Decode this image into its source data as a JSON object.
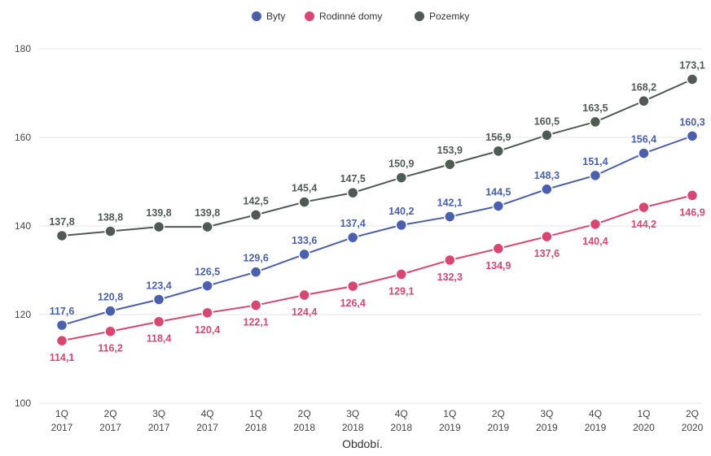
{
  "chart_data": {
    "type": "line",
    "categories": [
      [
        "1Q",
        "2017"
      ],
      [
        "2Q",
        "2017"
      ],
      [
        "3Q",
        "2017"
      ],
      [
        "4Q",
        "2017"
      ],
      [
        "1Q",
        "2018"
      ],
      [
        "2Q",
        "2018"
      ],
      [
        "3Q",
        "2018"
      ],
      [
        "4Q",
        "2018"
      ],
      [
        "1Q",
        "2019"
      ],
      [
        "2Q",
        "2019"
      ],
      [
        "3Q",
        "2019"
      ],
      [
        "4Q",
        "2019"
      ],
      [
        "1Q",
        "2020"
      ],
      [
        "2Q",
        "2020"
      ]
    ],
    "series": [
      {
        "name": "Byty",
        "color": "#4a5fad",
        "values": [
          117.6,
          120.8,
          123.4,
          126.5,
          129.6,
          133.6,
          137.4,
          140.2,
          142.1,
          144.5,
          148.3,
          151.4,
          156.4,
          160.3
        ],
        "labels": [
          "117,6",
          "120,8",
          "123,4",
          "126,5",
          "129,6",
          "133,6",
          "137,4",
          "140,2",
          "142,1",
          "144,5",
          "148,3",
          "151,4",
          "156,4",
          "160,3"
        ]
      },
      {
        "name": "Rodinné domy",
        "color": "#d94671",
        "values": [
          114.1,
          116.2,
          118.4,
          120.4,
          122.1,
          124.4,
          126.4,
          129.1,
          132.3,
          134.9,
          137.6,
          140.4,
          144.2,
          146.9
        ],
        "labels": [
          "114,1",
          "116,2",
          "118,4",
          "120,4",
          "122,1",
          "124,4",
          "126,4",
          "129,1",
          "132,3",
          "134,9",
          "137,6",
          "140,4",
          "144,2",
          "146,9"
        ]
      },
      {
        "name": "Pozemky",
        "color": "#505a55",
        "values": [
          137.8,
          138.8,
          139.8,
          139.8,
          142.5,
          145.4,
          147.5,
          150.9,
          153.9,
          156.9,
          160.5,
          163.5,
          168.2,
          173.1
        ],
        "labels": [
          "137,8",
          "138,8",
          "139,8",
          "139,8",
          "142,5",
          "145,4",
          "147,5",
          "150,9",
          "153,9",
          "156,9",
          "160,5",
          "163,5",
          "168,2",
          "173,1"
        ]
      }
    ],
    "xlabel": "Období.",
    "ylim": [
      100,
      180
    ],
    "yticks": [
      100,
      120,
      140,
      160,
      180
    ],
    "grid": true,
    "legend": "top-center"
  }
}
